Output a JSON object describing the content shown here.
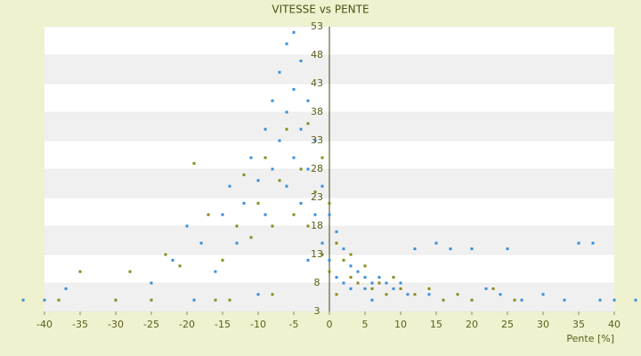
{
  "chart_data": {
    "type": "scatter",
    "title": "VITESSE vs PENTE",
    "x_label": "Pente [%]",
    "xlim": [
      -40,
      40
    ],
    "xticks": [
      -40,
      -35,
      -30,
      -25,
      -20,
      -15,
      -10,
      -5,
      0,
      5,
      10,
      15,
      20,
      25,
      30,
      35,
      40
    ],
    "ylim": [
      3,
      53
    ],
    "yticks": [
      3,
      8,
      13,
      18,
      23,
      28,
      33,
      38,
      43,
      48,
      53
    ],
    "series": [
      {
        "color": "#3a8fd8",
        "x": [
          -43,
          -40,
          -37,
          -30,
          -25,
          -22,
          -20,
          -18,
          -16,
          -15,
          -14,
          -13,
          -12,
          -11,
          -10,
          -9,
          -9,
          -8,
          -8,
          -7,
          -7,
          -6,
          -6,
          -6,
          -5,
          -5,
          -5,
          -4,
          -4,
          -4,
          -3,
          -3,
          -2,
          -2,
          -1,
          -1,
          0,
          0,
          1,
          1,
          2,
          2,
          3,
          3,
          4,
          5,
          5,
          6,
          7,
          8,
          9,
          10,
          12,
          14,
          15,
          17,
          20,
          22,
          25,
          27,
          30,
          33,
          35,
          37,
          38,
          40,
          43,
          -19,
          -10,
          -3,
          6,
          11,
          24
        ],
        "values": [
          5,
          5,
          7,
          5,
          8,
          12,
          18,
          15,
          10,
          20,
          25,
          15,
          22,
          30,
          26,
          35,
          20,
          40,
          28,
          45,
          33,
          50,
          38,
          25,
          52,
          42,
          30,
          47,
          35,
          22,
          40,
          28,
          33,
          20,
          25,
          15,
          20,
          12,
          17,
          9,
          14,
          8,
          11,
          7,
          10,
          9,
          7,
          8,
          9,
          8,
          7,
          8,
          14,
          6,
          15,
          14,
          14,
          7,
          14,
          5,
          6,
          5,
          15,
          15,
          5,
          5,
          5,
          5,
          6,
          12,
          5,
          6,
          6
        ]
      },
      {
        "color": "#8a8a1a",
        "x": [
          -38,
          -35,
          -28,
          -25,
          -23,
          -21,
          -19,
          -17,
          -15,
          -14,
          -13,
          -12,
          -11,
          -10,
          -9,
          -8,
          -7,
          -6,
          -5,
          -4,
          -3,
          -3,
          -2,
          -1,
          -1,
          0,
          0,
          1,
          1,
          2,
          3,
          3,
          4,
          5,
          6,
          7,
          8,
          9,
          10,
          12,
          14,
          16,
          18,
          20,
          23,
          26,
          -30,
          -16,
          -8
        ],
        "values": [
          5,
          10,
          10,
          5,
          13,
          11,
          29,
          20,
          12,
          5,
          18,
          27,
          16,
          22,
          30,
          18,
          26,
          35,
          20,
          28,
          36,
          18,
          24,
          30,
          13,
          22,
          10,
          15,
          6,
          12,
          9,
          13,
          8,
          11,
          7,
          8,
          6,
          9,
          7,
          6,
          7,
          5,
          6,
          5,
          7,
          5,
          5,
          5,
          6
        ]
      }
    ]
  }
}
